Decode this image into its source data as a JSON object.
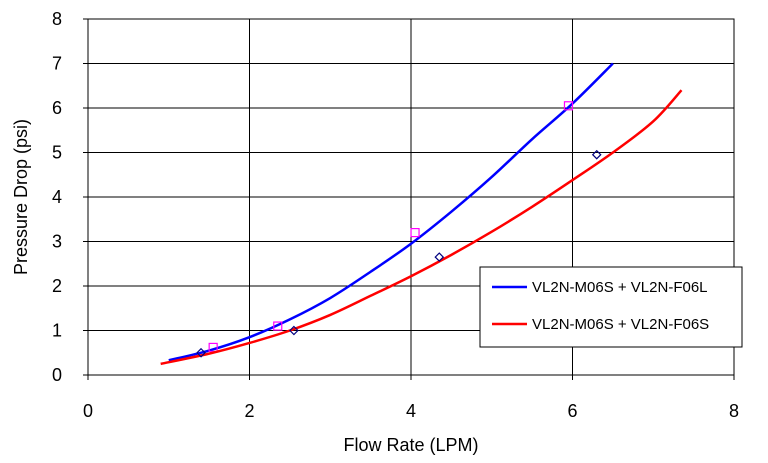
{
  "chart_data": {
    "type": "line",
    "title": "",
    "xlabel": "Flow Rate (LPM)",
    "ylabel": "Pressure Drop (psi)",
    "xlim": [
      0,
      8
    ],
    "ylim": [
      0,
      8
    ],
    "x_ticks": [
      "0",
      "2",
      "4",
      "6",
      "8"
    ],
    "y_ticks": [
      "0",
      "1",
      "2",
      "3",
      "4",
      "5",
      "6",
      "7",
      "8"
    ],
    "grid": true,
    "legend_position": "lower-right",
    "series": [
      {
        "name": "VL2N-M06S + VL2N-F06L",
        "color": "#0000ff",
        "marker_color": "#ff00ff",
        "marker": "square",
        "curve": [
          [
            1.0,
            0.33
          ],
          [
            1.5,
            0.55
          ],
          [
            2.0,
            0.85
          ],
          [
            2.5,
            1.25
          ],
          [
            3.0,
            1.73
          ],
          [
            3.5,
            2.32
          ],
          [
            4.0,
            2.95
          ],
          [
            4.5,
            3.67
          ],
          [
            5.0,
            4.45
          ],
          [
            5.5,
            5.3
          ],
          [
            6.0,
            6.1
          ],
          [
            6.5,
            7.0
          ]
        ],
        "points": [
          [
            1.55,
            0.62
          ],
          [
            2.35,
            1.1
          ],
          [
            4.05,
            3.2
          ],
          [
            5.95,
            6.05
          ]
        ]
      },
      {
        "name": "VL2N-M06S + VL2N-F06S",
        "color": "#ff0000",
        "marker_color": "#000080",
        "marker": "diamond",
        "curve": [
          [
            0.9,
            0.25
          ],
          [
            1.5,
            0.48
          ],
          [
            2.0,
            0.72
          ],
          [
            2.5,
            1.0
          ],
          [
            3.0,
            1.35
          ],
          [
            3.5,
            1.78
          ],
          [
            4.0,
            2.22
          ],
          [
            4.5,
            2.7
          ],
          [
            5.0,
            3.22
          ],
          [
            5.5,
            3.78
          ],
          [
            6.0,
            4.38
          ],
          [
            6.5,
            5.0
          ],
          [
            7.0,
            5.7
          ],
          [
            7.35,
            6.4
          ]
        ],
        "points": [
          [
            1.4,
            0.5
          ],
          [
            2.55,
            1.0
          ],
          [
            4.35,
            2.65
          ],
          [
            6.3,
            4.95
          ]
        ]
      }
    ]
  }
}
